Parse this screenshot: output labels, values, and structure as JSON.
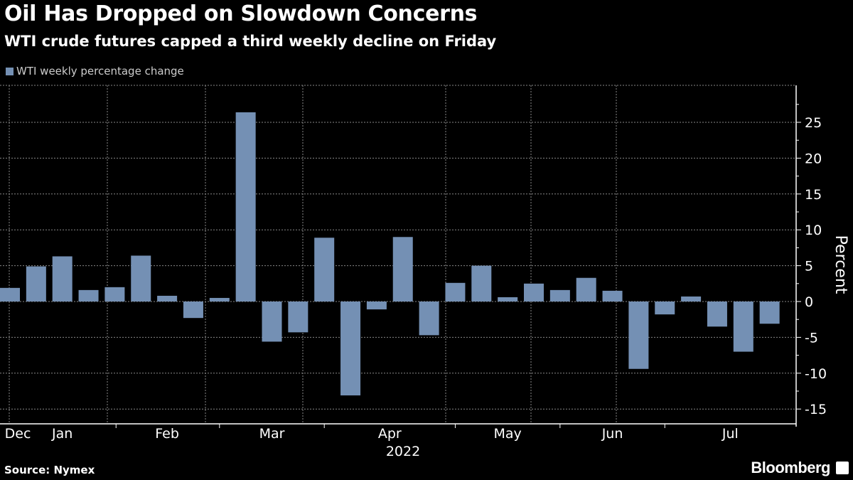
{
  "chart_data": {
    "type": "bar",
    "title": "Oil Has Dropped on Slowdown Concerns",
    "subtitle": "WTI crude futures capped a third weekly decline on Friday",
    "series": [
      {
        "name": "WTI weekly percentage change",
        "color": "#7490b4",
        "values": [
          1.9,
          4.9,
          6.3,
          1.6,
          2.0,
          6.4,
          0.8,
          -2.3,
          0.5,
          26.4,
          -5.6,
          -4.3,
          8.9,
          -13.1,
          -1.1,
          9.0,
          -4.7,
          2.6,
          5.0,
          0.6,
          2.5,
          1.6,
          3.3,
          1.5,
          -9.4,
          -1.8,
          0.7,
          -3.5,
          -7.0,
          -3.1
        ]
      }
    ],
    "x_tick_labels": [
      "Dec",
      "Jan",
      "Feb",
      "Mar",
      "Apr",
      "May",
      "Jun",
      "Jul"
    ],
    "x_year_label": "2022",
    "ylabel": "Percent",
    "y_ticks": [
      -15,
      -10,
      -5,
      0,
      5,
      10,
      15,
      20,
      25
    ],
    "ylim": [
      -17,
      30
    ],
    "grid": true,
    "legend": "top-left",
    "source": "Source: Nymex",
    "brand": "Bloomberg"
  }
}
